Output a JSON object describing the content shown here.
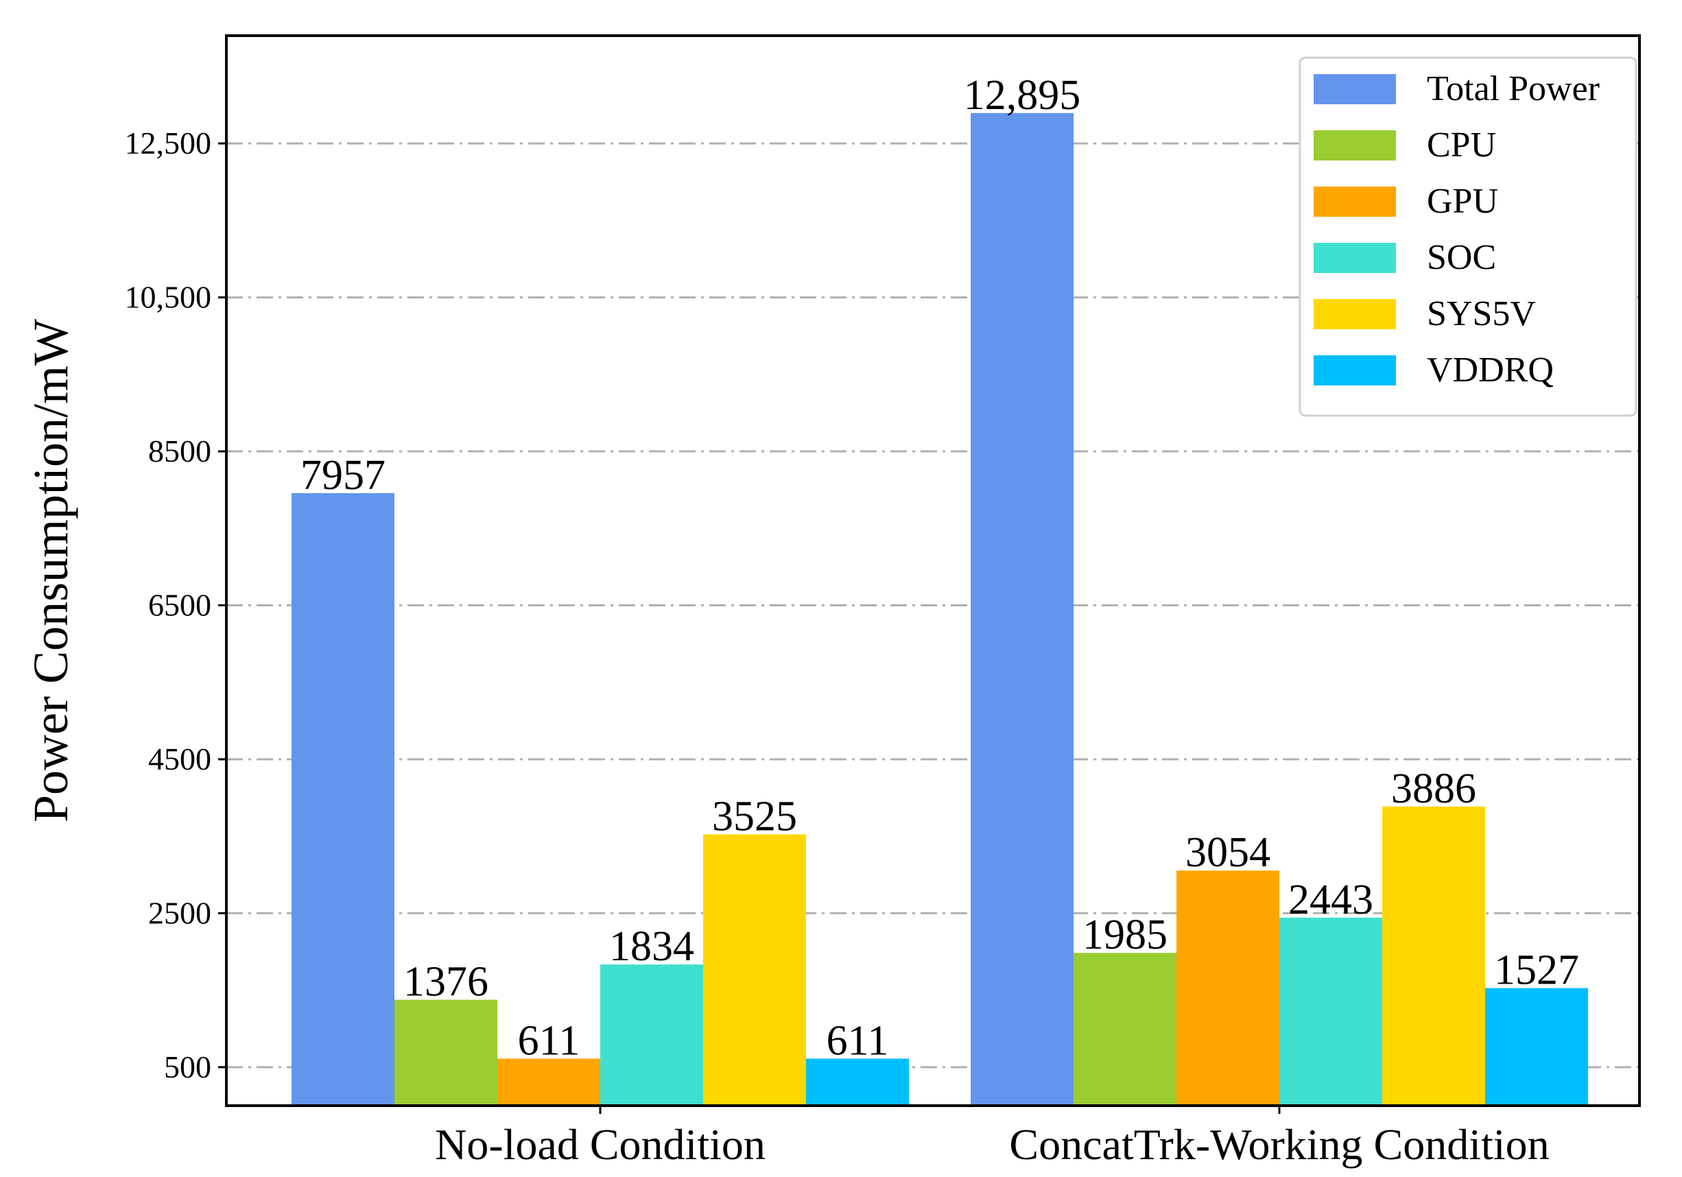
{
  "chart_data": {
    "type": "bar",
    "title": "",
    "xlabel": "",
    "ylabel": "Power Consumption/mW",
    "categories": [
      "No-load Condition",
      "ConcatTrk-Working Condition"
    ],
    "yticks": [
      500,
      2500,
      4500,
      6500,
      8500,
      10500,
      12500
    ],
    "ytick_labels": [
      "500",
      "2500",
      "4500",
      "6500",
      "8500",
      "10,500",
      "12,500"
    ],
    "ylim": [
      0,
      13900
    ],
    "grid": true,
    "legend_position": "top-right",
    "series": [
      {
        "name": "Total Power",
        "color": "#6495ED",
        "values": [
          7957,
          12895
        ],
        "labels": [
          "7957",
          "12,895"
        ]
      },
      {
        "name": "CPU",
        "color": "#9ACD32",
        "values": [
          1376,
          1985
        ],
        "labels": [
          "1376",
          "1985"
        ]
      },
      {
        "name": "GPU",
        "color": "#FFA500",
        "values": [
          611,
          3054
        ],
        "labels": [
          "611",
          "3054"
        ]
      },
      {
        "name": "SOC",
        "color": "#40E0D0",
        "values": [
          1834,
          2443
        ],
        "labels": [
          "1834",
          "2443"
        ]
      },
      {
        "name": "SYS5V",
        "color": "#FFD700",
        "values": [
          3525,
          3886
        ],
        "labels": [
          "3525",
          "3886"
        ]
      },
      {
        "name": "VDDRQ",
        "color": "#00BFFF",
        "values": [
          611,
          1527
        ],
        "labels": [
          "611",
          "1527"
        ]
      }
    ]
  }
}
